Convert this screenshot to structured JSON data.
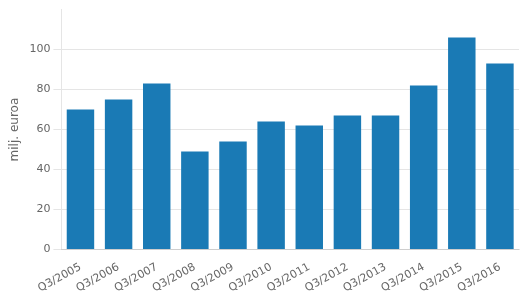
{
  "chart_data": {
    "type": "bar",
    "categories": [
      "Q3/2005",
      "Q3/2006",
      "Q3/2007",
      "Q3/2008",
      "Q3/2009",
      "Q3/2010",
      "Q3/2011",
      "Q3/2012",
      "Q3/2013",
      "Q3/2014",
      "Q3/2015",
      "Q3/2016"
    ],
    "values": [
      70,
      75,
      83,
      49,
      54,
      64,
      62,
      67,
      67,
      82,
      106,
      93
    ],
    "color": "#1a7ab5",
    "ylabel": "milj. euroa",
    "ylim": [
      0,
      120
    ],
    "yticks": [
      0,
      20,
      40,
      60,
      80,
      100
    ],
    "grid": true
  }
}
